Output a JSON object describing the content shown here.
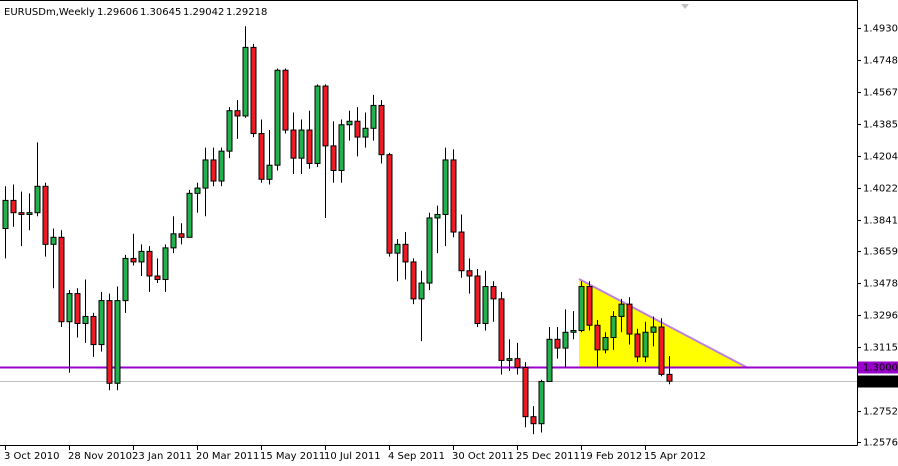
{
  "chart_data": {
    "type": "candlestick",
    "title": "EURUSDm,Weekly",
    "header_values": [
      1.29606,
      1.30645,
      1.29042,
      1.29218
    ],
    "categories": [
      "3 Oct 2010",
      null,
      null,
      null,
      null,
      null,
      null,
      null,
      "28 Nov 2010",
      null,
      null,
      null,
      null,
      null,
      null,
      null,
      "23 Jan 2011",
      null,
      null,
      null,
      null,
      null,
      null,
      null,
      "20 Mar 2011",
      null,
      null,
      null,
      null,
      null,
      null,
      null,
      "15 May 2011",
      null,
      null,
      null,
      null,
      null,
      null,
      null,
      "10 Jul 2011",
      null,
      null,
      null,
      null,
      null,
      null,
      null,
      "4 Sep 2011",
      null,
      null,
      null,
      null,
      null,
      null,
      null,
      "30 Oct 2011",
      null,
      null,
      null,
      null,
      null,
      null,
      null,
      "25 Dec 2011",
      null,
      null,
      null,
      null,
      null,
      null,
      null,
      "19 Feb 2012",
      null,
      null,
      null,
      null,
      null,
      null,
      null,
      "15 Apr 2012",
      null,
      null,
      null
    ],
    "open": [
      1.379,
      1.395,
      1.388,
      1.387,
      1.388,
      1.403,
      1.37,
      1.374,
      1.326,
      1.342,
      1.325,
      1.329,
      1.313,
      1.338,
      1.291,
      1.338,
      1.362,
      1.36,
      1.366,
      1.352,
      1.35,
      1.368,
      1.376,
      1.374,
      1.399,
      1.402,
      1.418,
      1.406,
      1.423,
      1.446,
      1.443,
      1.482,
      1.433,
      1.407,
      1.415,
      1.469,
      1.435,
      1.419,
      1.435,
      1.416,
      1.46,
      1.426,
      1.412,
      1.438,
      1.44,
      1.431,
      1.436,
      1.449,
      1.421,
      1.365,
      1.37,
      1.36,
      1.339,
      1.348,
      1.385,
      1.387,
      1.418,
      1.377,
      1.355,
      1.352,
      1.325,
      1.346,
      1.339,
      1.304,
      1.305,
      1.3,
      1.272,
      1.268,
      1.292,
      1.316,
      1.311,
      1.32,
      1.321,
      1.346,
      1.324,
      1.31,
      1.317,
      1.329,
      1.336,
      1.319,
      1.306,
      1.32,
      1.323,
      1.29606
    ],
    "high": [
      1.403,
      1.404,
      1.4,
      1.399,
      1.428,
      1.405,
      1.379,
      1.378,
      1.344,
      1.345,
      1.35,
      1.331,
      1.343,
      1.342,
      1.346,
      1.364,
      1.376,
      1.37,
      1.369,
      1.362,
      1.37,
      1.386,
      1.382,
      1.401,
      1.405,
      1.425,
      1.425,
      1.425,
      1.448,
      1.452,
      1.494,
      1.484,
      1.441,
      1.435,
      1.47,
      1.47,
      1.445,
      1.441,
      1.446,
      1.461,
      1.461,
      1.44,
      1.441,
      1.446,
      1.448,
      1.445,
      1.455,
      1.452,
      1.422,
      1.373,
      1.377,
      1.362,
      1.355,
      1.388,
      1.392,
      1.425,
      1.424,
      1.387,
      1.362,
      1.356,
      1.355,
      1.349,
      1.343,
      1.316,
      1.314,
      1.303,
      1.278,
      1.293,
      1.323,
      1.323,
      1.333,
      1.332,
      1.349,
      1.349,
      1.327,
      1.32,
      1.332,
      1.339,
      1.34,
      1.322,
      1.326,
      1.329,
      1.328,
      1.30645
    ],
    "low": [
      1.362,
      1.38,
      1.369,
      1.378,
      1.386,
      1.363,
      1.345,
      1.323,
      1.297,
      1.317,
      1.314,
      1.306,
      1.309,
      1.287,
      1.287,
      1.331,
      1.358,
      1.352,
      1.343,
      1.348,
      1.343,
      1.365,
      1.37,
      1.374,
      1.388,
      1.386,
      1.403,
      1.403,
      1.419,
      1.43,
      1.442,
      1.431,
      1.405,
      1.404,
      1.412,
      1.433,
      1.41,
      1.41,
      1.413,
      1.414,
      1.385,
      1.405,
      1.405,
      1.429,
      1.42,
      1.425,
      1.429,
      1.416,
      1.363,
      1.349,
      1.35,
      1.336,
      1.315,
      1.344,
      1.365,
      1.369,
      1.374,
      1.351,
      1.342,
      1.323,
      1.321,
      1.326,
      1.296,
      1.298,
      1.296,
      1.266,
      1.262,
      1.263,
      1.292,
      1.305,
      1.3,
      1.316,
      1.32,
      1.321,
      1.3,
      1.308,
      1.31,
      1.32,
      1.313,
      1.303,
      1.303,
      1.312,
      1.295,
      1.29042
    ],
    "close": [
      1.395,
      1.388,
      1.387,
      1.388,
      1.403,
      1.37,
      1.374,
      1.326,
      1.342,
      1.325,
      1.329,
      1.313,
      1.338,
      1.291,
      1.338,
      1.362,
      1.36,
      1.366,
      1.352,
      1.35,
      1.368,
      1.376,
      1.374,
      1.399,
      1.402,
      1.418,
      1.406,
      1.423,
      1.446,
      1.443,
      1.482,
      1.433,
      1.407,
      1.415,
      1.469,
      1.435,
      1.419,
      1.435,
      1.416,
      1.46,
      1.426,
      1.412,
      1.438,
      1.44,
      1.431,
      1.436,
      1.449,
      1.421,
      1.365,
      1.37,
      1.36,
      1.339,
      1.348,
      1.385,
      1.387,
      1.418,
      1.377,
      1.355,
      1.352,
      1.325,
      1.346,
      1.339,
      1.304,
      1.305,
      1.3,
      1.272,
      1.268,
      1.292,
      1.316,
      1.311,
      1.32,
      1.321,
      1.346,
      1.324,
      1.31,
      1.317,
      1.329,
      1.336,
      1.319,
      1.306,
      1.32,
      1.323,
      1.29606,
      1.29218
    ],
    "up_color": "#22b14c",
    "down_color": "#ed1c24",
    "ylim": [
      1.2559,
      1.5061
    ],
    "yticks": [
      {
        "value": 1.493,
        "label": "1.49300"
      },
      {
        "value": 1.47485,
        "label": "1.47485"
      },
      {
        "value": 1.4567,
        "label": "1.45670"
      },
      {
        "value": 1.43855,
        "label": "1.43855"
      },
      {
        "value": 1.4204,
        "label": "1.42040"
      },
      {
        "value": 1.40225,
        "label": "1.40225"
      },
      {
        "value": 1.3841,
        "label": "1.38410"
      },
      {
        "value": 1.36595,
        "label": "1.36595"
      },
      {
        "value": 1.3478,
        "label": "1.34780"
      },
      {
        "value": 1.32965,
        "label": "1.32965"
      },
      {
        "value": 1.3115,
        "label": "1.31150"
      },
      {
        "value": 1.2752,
        "label": "1.27520"
      },
      {
        "value": 1.2576,
        "label": "1.25760"
      }
    ],
    "level": {
      "value": 1.3,
      "label": "1.30000",
      "color": "#9900cc"
    },
    "last_price": {
      "value": 1.29218,
      "label": "1.29218"
    }
  }
}
